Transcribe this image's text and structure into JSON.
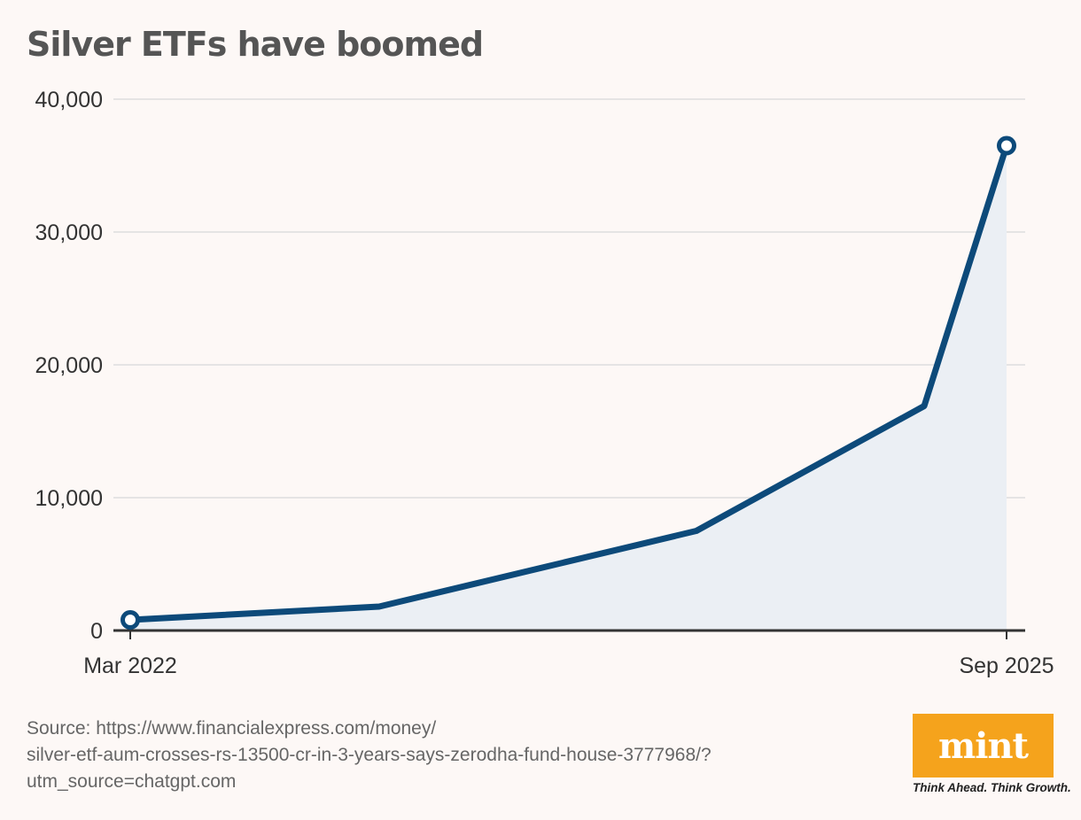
{
  "chart_data": {
    "type": "area",
    "title": "Silver ETFs have boomed",
    "x_labels": [
      "Mar 2022",
      "Sep 2025"
    ],
    "y_ticks": [
      "0",
      "10,000",
      "20,000",
      "30,000",
      "40,000"
    ],
    "ylim": [
      0,
      40000
    ],
    "series": [
      {
        "values": [
          800,
          1800,
          7500,
          16900,
          36500
        ],
        "x_positions_fraction": [
          0,
          0.284,
          0.646,
          0.906,
          1
        ]
      }
    ],
    "grid": true,
    "line_color": "#0d4a7a",
    "fill_color": "#ebeff4",
    "grid_color": "#dddddd"
  },
  "source": {
    "lines": [
      "Source: https://www.financialexpress.com/money/",
      "silver-etf-aum-crosses-rs-13500-cr-in-3-years-says-zerodha-fund-house-3777968/?",
      "utm_source=chatgpt.com"
    ]
  },
  "logo": {
    "wordmark": "mint",
    "tagline": "Think Ahead. Think Growth."
  }
}
